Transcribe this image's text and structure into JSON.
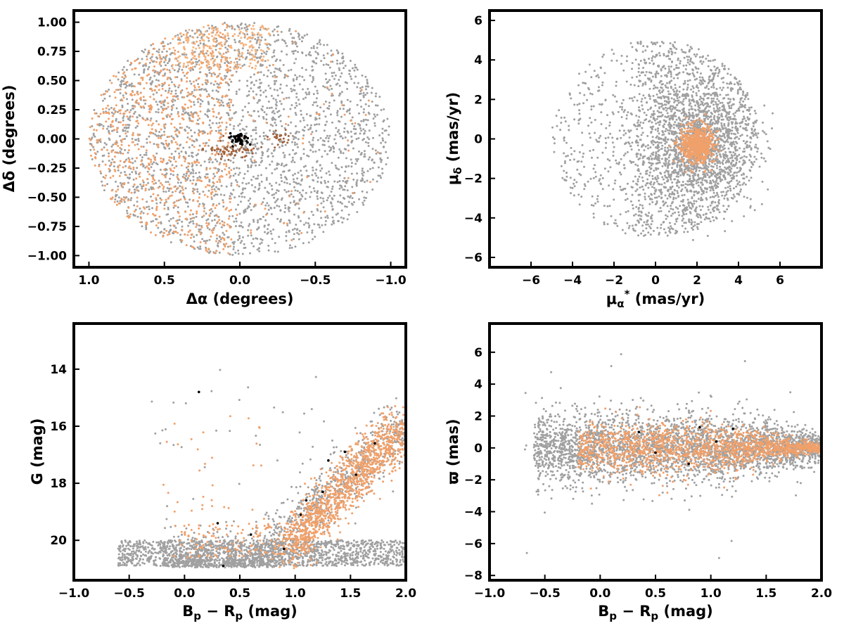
{
  "colors": {
    "field": "#a0a0a0",
    "members": "#f0a06a",
    "members_light": "#f7b47d",
    "groups": "#a0603a",
    "core": "#000000"
  },
  "chart_data": [
    {
      "id": "sky",
      "type": "scatter",
      "xlabel": "Δα (degrees)",
      "ylabel": "Δδ (degrees)",
      "xlim": [
        1.1,
        -1.1
      ],
      "ylim": [
        -1.1,
        1.1
      ],
      "x_reversed": true,
      "xticks": [
        1.0,
        0.5,
        0.0,
        -0.5,
        -1.0
      ],
      "xtick_labels": [
        "1.0",
        "0.5",
        "0.0",
        "−0.5",
        "−1.0"
      ],
      "yticks": [
        1.0,
        0.75,
        0.5,
        0.25,
        0.0,
        -0.25,
        -0.5,
        -0.75,
        -1.0
      ],
      "ytick_labels": [
        "1.00",
        "0.75",
        "0.50",
        "0.25",
        "0.00",
        "−0.25",
        "−0.50",
        "−0.75",
        "−1.00"
      ],
      "series": [
        {
          "role": "field",
          "shape": "disk",
          "center": [
            0.0,
            0.0
          ],
          "radius": 1.0,
          "n": 2400
        },
        {
          "role": "members",
          "shape": "disk",
          "center": [
            0.0,
            0.0
          ],
          "radius": 1.0,
          "x_min": 0.05,
          "n": 1700
        },
        {
          "role": "members_light",
          "shape": "box",
          "x_range": [
            0.45,
            -0.2
          ],
          "y_range": [
            0.6,
            0.98
          ],
          "n": 220
        },
        {
          "role": "groups",
          "shape": "gauss",
          "center": [
            0.05,
            -0.1
          ],
          "sigma": [
            0.08,
            0.04
          ],
          "n": 60
        },
        {
          "role": "groups",
          "shape": "gauss",
          "center": [
            -0.27,
            0.0
          ],
          "sigma": [
            0.03,
            0.03
          ],
          "n": 25
        },
        {
          "role": "core",
          "shape": "gauss",
          "center": [
            0.0,
            0.0
          ],
          "sigma": [
            0.03,
            0.025
          ],
          "n": 45
        }
      ]
    },
    {
      "id": "pm",
      "type": "scatter",
      "xlabel": "μα* (mas/yr)",
      "ylabel": "μδ (mas/yr)",
      "xlim": [
        -8,
        8
      ],
      "ylim": [
        -6.5,
        6.5
      ],
      "xticks": [
        -6,
        -4,
        -2,
        0,
        2,
        4,
        6
      ],
      "xtick_labels": [
        "−6",
        "−4",
        "−2",
        "0",
        "2",
        "4",
        "6"
      ],
      "yticks": [
        6,
        4,
        2,
        0,
        -2,
        -4,
        -6
      ],
      "ytick_labels": [
        "6",
        "4",
        "2",
        "0",
        "−2",
        "−4",
        "−6"
      ],
      "series": [
        {
          "role": "field",
          "shape": "disk",
          "center": [
            0.0,
            0.0
          ],
          "radius": 5.0,
          "sparse_left": true,
          "n": 2200
        },
        {
          "role": "field",
          "shape": "gauss",
          "center": [
            2.0,
            -0.3
          ],
          "sigma": [
            1.3,
            1.5
          ],
          "n": 1300
        },
        {
          "role": "members",
          "shape": "gauss",
          "center": [
            2.0,
            -0.3
          ],
          "sigma": [
            0.4,
            0.45
          ],
          "n": 700
        }
      ]
    },
    {
      "id": "cmd",
      "type": "scatter",
      "xlabel": "Bp − Rp (mag)",
      "ylabel": "G (mag)",
      "xlim": [
        -1.0,
        2.0
      ],
      "ylim": [
        21.4,
        12.4
      ],
      "y_reversed": true,
      "xticks": [
        -1.0,
        -0.5,
        0.0,
        0.5,
        1.0,
        1.5,
        2.0
      ],
      "xtick_labels": [
        "−1.0",
        "−0.5",
        "0.0",
        "0.5",
        "1.0",
        "1.5",
        "2.0"
      ],
      "yticks": [
        20,
        18,
        16,
        14
      ],
      "ytick_labels": [
        "20",
        "18",
        "16",
        "14"
      ],
      "series": [
        {
          "role": "field",
          "shape": "cmd",
          "n": 2600
        },
        {
          "role": "members",
          "shape": "cmd-sequence",
          "n": 1200
        },
        {
          "role": "core",
          "shape": "points",
          "x": [
            0.35,
            0.9,
            1.1,
            1.25,
            1.3,
            1.45,
            1.55,
            1.72,
            0.13,
            0.6,
            1.05,
            0.3
          ],
          "y": [
            20.9,
            20.3,
            18.6,
            18.3,
            17.2,
            16.9,
            17.7,
            16.6,
            14.8,
            19.8,
            19.1,
            19.4
          ]
        }
      ]
    },
    {
      "id": "parallax",
      "type": "scatter",
      "xlabel": "Bp − Rp (mag)",
      "ylabel": "ϖ (mas)",
      "xlim": [
        -1.0,
        2.0
      ],
      "ylim": [
        -8.3,
        7.8
      ],
      "xticks": [
        -1.0,
        -0.5,
        0.0,
        0.5,
        1.0,
        1.5,
        2.0
      ],
      "xtick_labels": [
        "−1.0",
        "−0.5",
        "0.0",
        "0.5",
        "1.0",
        "1.5",
        "2.0"
      ],
      "yticks": [
        6,
        4,
        2,
        0,
        -2,
        -4,
        -6,
        -8
      ],
      "ytick_labels": [
        "6",
        "4",
        "2",
        "0",
        "−2",
        "−4",
        "−6",
        "−8"
      ],
      "series": [
        {
          "role": "field",
          "shape": "plx",
          "n": 3000
        },
        {
          "role": "members",
          "shape": "plx-narrow",
          "n": 1500
        },
        {
          "role": "core",
          "shape": "points",
          "x": [
            0.35,
            0.5,
            0.9,
            1.2,
            0.8,
            1.05
          ],
          "y": [
            1.0,
            -0.3,
            1.3,
            1.2,
            -1.0,
            0.4
          ]
        }
      ]
    }
  ]
}
